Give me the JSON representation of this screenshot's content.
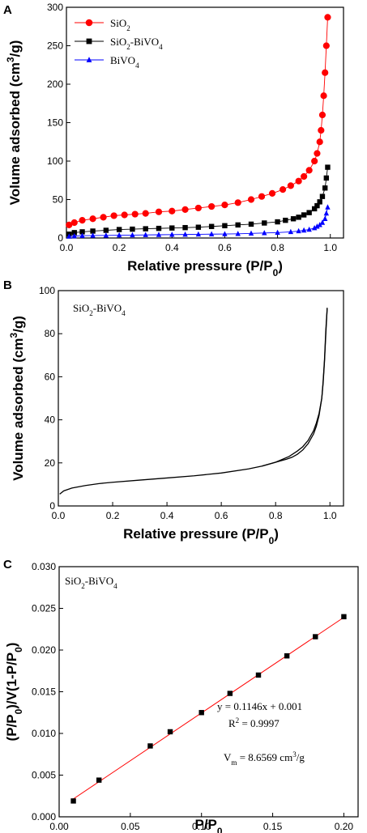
{
  "chart_data": [
    {
      "panel": "A",
      "type": "line",
      "xlabel": "Relative pressure (P/P0)",
      "xlabel_main": "Relative pressure (P/P",
      "xlabel_sub": "0",
      "xlabel_tail": ")",
      "ylabel": "Volume adsorbed (cm3/g)",
      "ylabel_main": "Volume adsorbed (cm",
      "ylabel_sup": "3",
      "ylabel_tail": "/g)",
      "xlim": [
        0.0,
        1.05
      ],
      "ylim": [
        0,
        300
      ],
      "xticks": [
        0.0,
        0.2,
        0.4,
        0.6,
        0.8,
        1.0
      ],
      "xtick_labels": [
        "0.0",
        "0.2",
        "0.4",
        "0.6",
        "0.8",
        "1.0"
      ],
      "yticks": [
        0,
        50,
        100,
        150,
        200,
        250,
        300
      ],
      "ytick_labels": [
        "0",
        "50",
        "100",
        "150",
        "200",
        "250",
        "300"
      ],
      "legend_position": "top-left",
      "grid": false,
      "series": [
        {
          "name": "SiO2",
          "label_main": "SiO",
          "label_sub": "2",
          "label_tail": "",
          "color": "#ff0000",
          "marker": "circle",
          "x": [
            0.01,
            0.03,
            0.06,
            0.1,
            0.14,
            0.18,
            0.22,
            0.26,
            0.3,
            0.35,
            0.4,
            0.45,
            0.5,
            0.55,
            0.6,
            0.65,
            0.7,
            0.74,
            0.78,
            0.82,
            0.85,
            0.88,
            0.9,
            0.92,
            0.94,
            0.95,
            0.96,
            0.965,
            0.97,
            0.975,
            0.98,
            0.985,
            0.99
          ],
          "y": [
            17,
            20,
            23,
            25,
            27,
            29,
            30,
            31,
            32,
            34,
            35,
            37,
            39,
            41,
            43,
            46,
            50,
            54,
            58,
            63,
            68,
            74,
            80,
            88,
            100,
            110,
            125,
            140,
            160,
            185,
            215,
            250,
            287
          ]
        },
        {
          "name": "SiO2-BiVO4",
          "label_main": "SiO",
          "label_sub": "2",
          "label_tail": "-BiVO",
          "label_sub2": "4",
          "color": "#000000",
          "marker": "square",
          "x": [
            0.01,
            0.03,
            0.06,
            0.1,
            0.15,
            0.2,
            0.25,
            0.3,
            0.35,
            0.4,
            0.45,
            0.5,
            0.55,
            0.6,
            0.65,
            0.7,
            0.75,
            0.8,
            0.83,
            0.86,
            0.88,
            0.9,
            0.92,
            0.94,
            0.95,
            0.96,
            0.97,
            0.98,
            0.985,
            0.99
          ],
          "y": [
            5,
            7,
            8,
            9,
            10,
            11,
            11.5,
            12,
            12.5,
            13,
            13.5,
            14,
            15,
            16,
            17,
            18,
            19.5,
            21,
            23,
            25,
            27,
            30,
            33,
            38,
            42,
            47,
            54,
            65,
            78,
            92
          ]
        },
        {
          "name": "BiVO4",
          "label_main": "BiVO",
          "label_sub": "4",
          "label_tail": "",
          "color": "#0000ff",
          "marker": "triangle",
          "x": [
            0.01,
            0.03,
            0.06,
            0.1,
            0.15,
            0.2,
            0.25,
            0.3,
            0.35,
            0.4,
            0.45,
            0.5,
            0.55,
            0.6,
            0.65,
            0.7,
            0.75,
            0.8,
            0.85,
            0.88,
            0.9,
            0.92,
            0.94,
            0.95,
            0.96,
            0.97,
            0.98,
            0.985,
            0.99
          ],
          "y": [
            2,
            2.5,
            3,
            3.2,
            3.4,
            3.6,
            3.8,
            4,
            4.2,
            4.4,
            4.6,
            4.8,
            5,
            5.2,
            5.5,
            6,
            6.5,
            7,
            8,
            9,
            10,
            11,
            13,
            15,
            17,
            20,
            25,
            32,
            40
          ]
        }
      ]
    },
    {
      "panel": "B",
      "type": "line",
      "annotation_main": "SiO",
      "annotation_sub": "2",
      "annotation_tail": "-BiVO",
      "annotation_sub2": "4",
      "xlabel": "Relative pressure (P/P0)",
      "xlabel_main": "Relative pressure (P/P",
      "xlabel_sub": "0",
      "xlabel_tail": ")",
      "ylabel": "Volume adsorbed (cm3/g)",
      "ylabel_main": "Volume adsorbed (cm",
      "ylabel_sup": "3",
      "ylabel_tail": "/g)",
      "xlim": [
        0.0,
        1.05
      ],
      "ylim": [
        0,
        100
      ],
      "xticks": [
        0.0,
        0.2,
        0.4,
        0.6,
        0.8,
        1.0
      ],
      "xtick_labels": [
        "0.0",
        "0.2",
        "0.4",
        "0.6",
        "0.8",
        "1.0"
      ],
      "yticks": [
        0,
        20,
        40,
        60,
        80,
        100
      ],
      "ytick_labels": [
        "0",
        "20",
        "40",
        "60",
        "80",
        "100"
      ],
      "grid": false,
      "series": [
        {
          "color": "#000000",
          "x": [
            0.005,
            0.02,
            0.05,
            0.1,
            0.15,
            0.2,
            0.3,
            0.4,
            0.5,
            0.6,
            0.7,
            0.75,
            0.8,
            0.85,
            0.88,
            0.9,
            0.92,
            0.94,
            0.95,
            0.96,
            0.97,
            0.975,
            0.98,
            0.985,
            0.99
          ],
          "y": [
            5.5,
            7,
            8.3,
            9.5,
            10.4,
            11,
            12,
            13,
            14,
            15.3,
            17.2,
            18.5,
            20.3,
            23,
            25.5,
            27.5,
            30.5,
            35,
            38.5,
            43,
            50,
            57,
            67,
            80,
            92
          ]
        },
        {
          "color": "#000000",
          "x": [
            0.99,
            0.985,
            0.98,
            0.975,
            0.97,
            0.96,
            0.95,
            0.94,
            0.92,
            0.9,
            0.88,
            0.86,
            0.84,
            0.82,
            0.8,
            0.75
          ],
          "y": [
            92,
            82,
            68,
            58,
            50,
            42,
            37,
            33.5,
            29,
            26,
            24,
            22.6,
            21.7,
            21,
            20.3,
            18.5
          ]
        }
      ]
    },
    {
      "panel": "C",
      "type": "scatter",
      "annotation_main": "SiO",
      "annotation_sub": "2",
      "annotation_tail": "-BiVO",
      "annotation_sub2": "4",
      "equation": "y = 0.1146x + 0.001",
      "r2_main": "R",
      "r2_sup": "2",
      "r2_tail": " = 0.9997",
      "vm_main": "V",
      "vm_sub": "m",
      "vm_tail": " = 8.6569  cm",
      "vm_sup": "3",
      "vm_tail2": "/g",
      "xlabel": "P/P0",
      "xlabel_main": "P/P",
      "xlabel_sub": "0",
      "ylabel": "(P/P0)/V(1-P/P0)",
      "ylabel_p1": "(P/P",
      "ylabel_s1": "0",
      "ylabel_p2": ")/V(1-P/P",
      "ylabel_s2": "0",
      "ylabel_p3": ")",
      "xlim": [
        0.0,
        0.21
      ],
      "ylim": [
        0.0,
        0.03
      ],
      "xticks": [
        0.0,
        0.05,
        0.1,
        0.15,
        0.2
      ],
      "xtick_labels": [
        "0.00",
        "0.05",
        "0.10",
        "0.15",
        "0.20"
      ],
      "yticks": [
        0.0,
        0.005,
        0.01,
        0.015,
        0.02,
        0.025,
        0.03
      ],
      "ytick_labels": [
        "0.000",
        "0.005",
        "0.010",
        "0.015",
        "0.020",
        "0.025",
        "0.030"
      ],
      "grid": false,
      "fit_color": "#ff0000",
      "fit": {
        "slope": 0.1146,
        "intercept": 0.001,
        "x_start": 0.01,
        "x_end": 0.2
      },
      "points": {
        "color": "#000000",
        "x": [
          0.01,
          0.028,
          0.064,
          0.078,
          0.1,
          0.12,
          0.14,
          0.16,
          0.18,
          0.2
        ],
        "y": [
          0.0019,
          0.0044,
          0.0085,
          0.0102,
          0.0125,
          0.0148,
          0.017,
          0.0193,
          0.0216,
          0.024
        ]
      }
    }
  ]
}
